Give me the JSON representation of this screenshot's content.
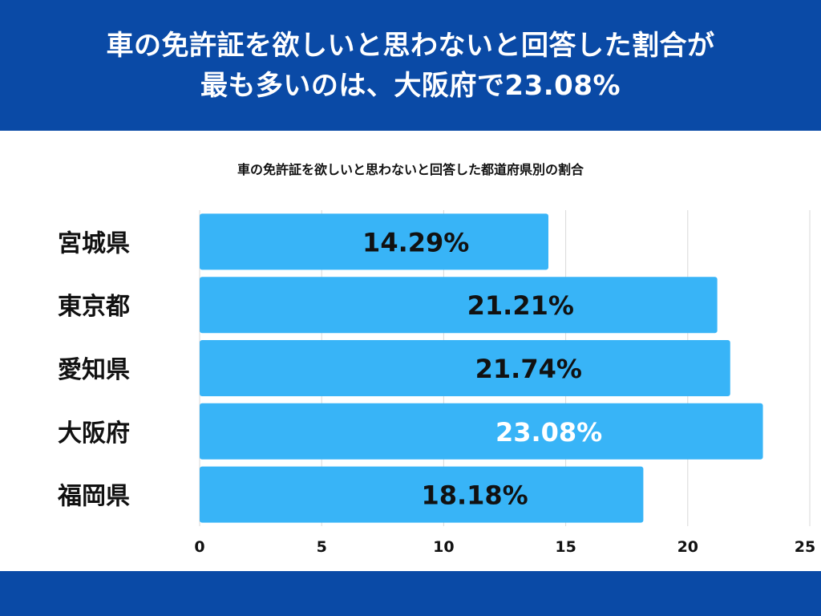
{
  "headline": {
    "line1": "車の免許証を欲しいと思わないと回答した割合が",
    "line2": "最も多いのは、大阪府で23.08%"
  },
  "colors": {
    "header_bg": "#0a4aa6",
    "bar": "#38b4f7",
    "highlight_label": "#ffffff",
    "label": "#111111",
    "grid": "#d9d9d9"
  },
  "chart_data": {
    "type": "bar",
    "orientation": "horizontal",
    "title": "車の免許証を欲しいと思わないと回答した都道府県別の割合",
    "categories": [
      "宮城県",
      "東京都",
      "愛知県",
      "大阪府",
      "福岡県"
    ],
    "values": [
      14.29,
      21.21,
      21.74,
      23.08,
      18.18
    ],
    "data_labels": [
      "14.29%",
      "21.21%",
      "21.74%",
      "23.08%",
      "18.18%"
    ],
    "highlight": "大阪府",
    "xlim": [
      0,
      25
    ],
    "xticks": [
      0,
      5,
      10,
      15,
      20,
      25
    ],
    "grid": true,
    "legend": "none"
  }
}
